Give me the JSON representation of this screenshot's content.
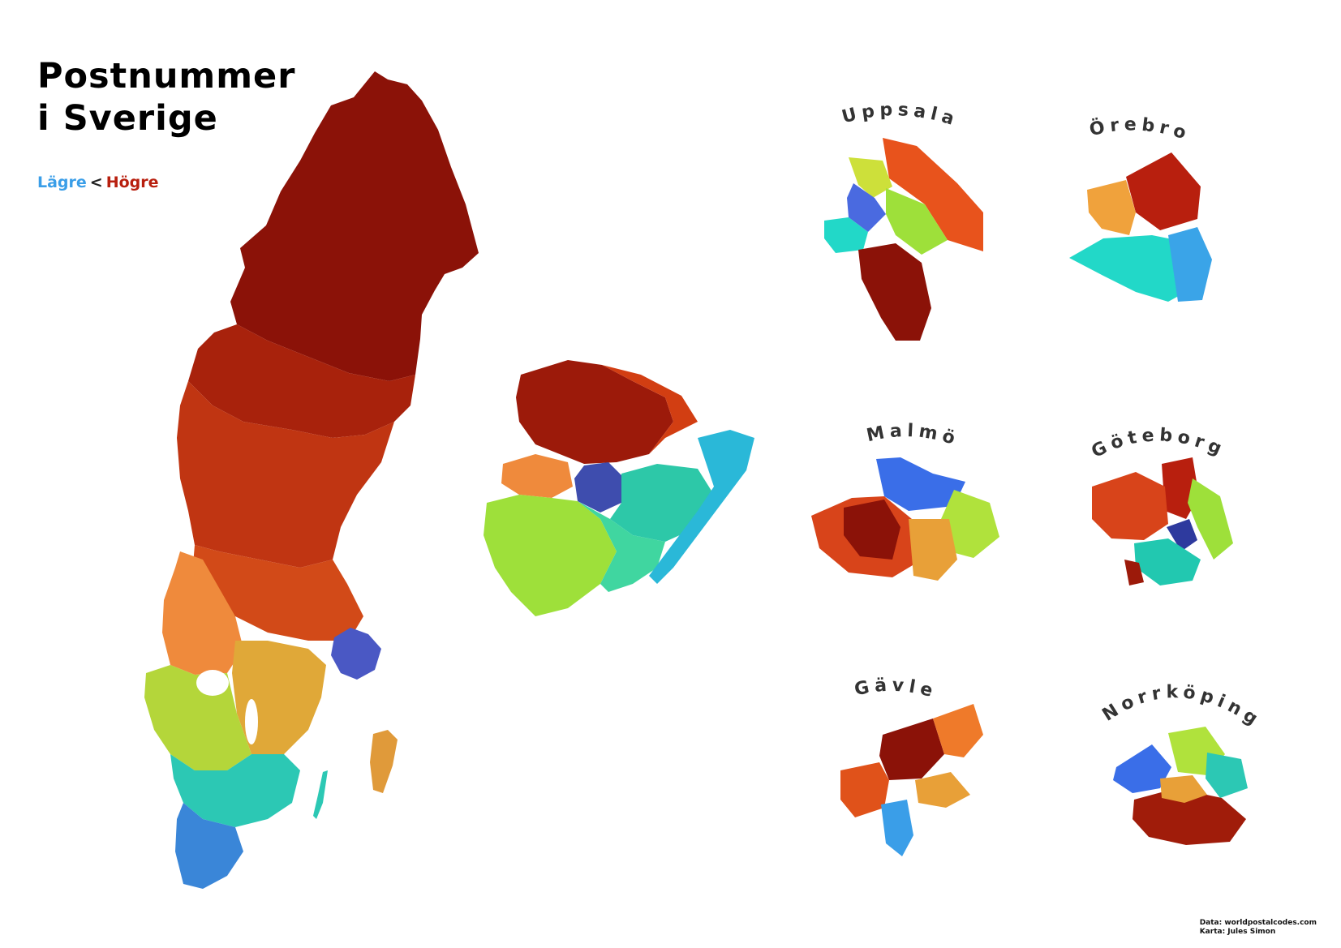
{
  "title": {
    "line1": "Postnummer",
    "line2": "i Sverige"
  },
  "legend": {
    "low": "Lägre",
    "separator": "<",
    "high": "Högre"
  },
  "colors": {
    "low": "#3a9ee8",
    "high": "#b81f0e"
  },
  "maps": {
    "sweden": {
      "name": ""
    },
    "stockholm": {
      "name": ""
    },
    "insets": [
      {
        "name": "Uppsala"
      },
      {
        "name": "Örebro"
      },
      {
        "name": "Malmö"
      },
      {
        "name": "Göteborg"
      },
      {
        "name": "Gävle"
      },
      {
        "name": "Norrköping"
      }
    ]
  },
  "credits": {
    "data": "Data: worldpostalcodes.com",
    "map": "Karta: Jules Simon"
  }
}
